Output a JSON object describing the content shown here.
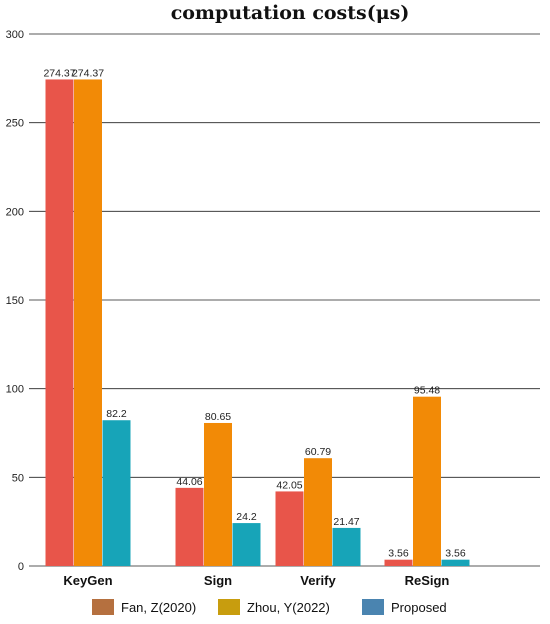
{
  "chart_data": {
    "type": "bar",
    "title": "computation costs(μs)",
    "categories": [
      "KeyGen",
      "Sign",
      "Verify",
      "ReSign"
    ],
    "series": [
      {
        "name": "Fan, Z(2020)",
        "values": [
          274.37,
          44.06,
          42.05,
          3.56
        ],
        "labels": [
          "274.37",
          "44.06",
          "42.05",
          "3.56"
        ],
        "color": "#e8554a",
        "legend_color": "#b5703f"
      },
      {
        "name": "Zhou, Y(2022)",
        "values": [
          274.37,
          80.65,
          60.79,
          95.48
        ],
        "labels": [
          "274.37",
          "80.65",
          "60.79",
          "95.48"
        ],
        "color": "#f28a06",
        "legend_color": "#c89d0e"
      },
      {
        "name": "Proposed",
        "values": [
          82.2,
          24.2,
          21.47,
          3.56
        ],
        "labels": [
          "82.2",
          "24.2",
          "21.47",
          "3.56"
        ],
        "color": "#17a4b8",
        "legend_color": "#4a84b0"
      }
    ],
    "ylim": [
      0,
      300
    ],
    "yticks": [
      "0",
      "50",
      "100",
      "150",
      "200",
      "250",
      "300"
    ],
    "grid": true,
    "legend_position": "bottom"
  }
}
